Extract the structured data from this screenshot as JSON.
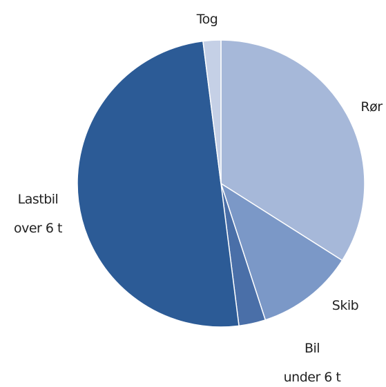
{
  "chart_data": {
    "type": "pie",
    "categories": [
      "Rør",
      "Skib",
      "Bil\nunder 6 t",
      "Lastbil\nover 6 t",
      "Tog"
    ],
    "values": [
      34,
      11,
      3,
      50,
      2
    ],
    "colors": [
      "#a6b8d9",
      "#7b98c7",
      "#4a6fa8",
      "#2c5b96",
      "#c5d0e6"
    ]
  }
}
